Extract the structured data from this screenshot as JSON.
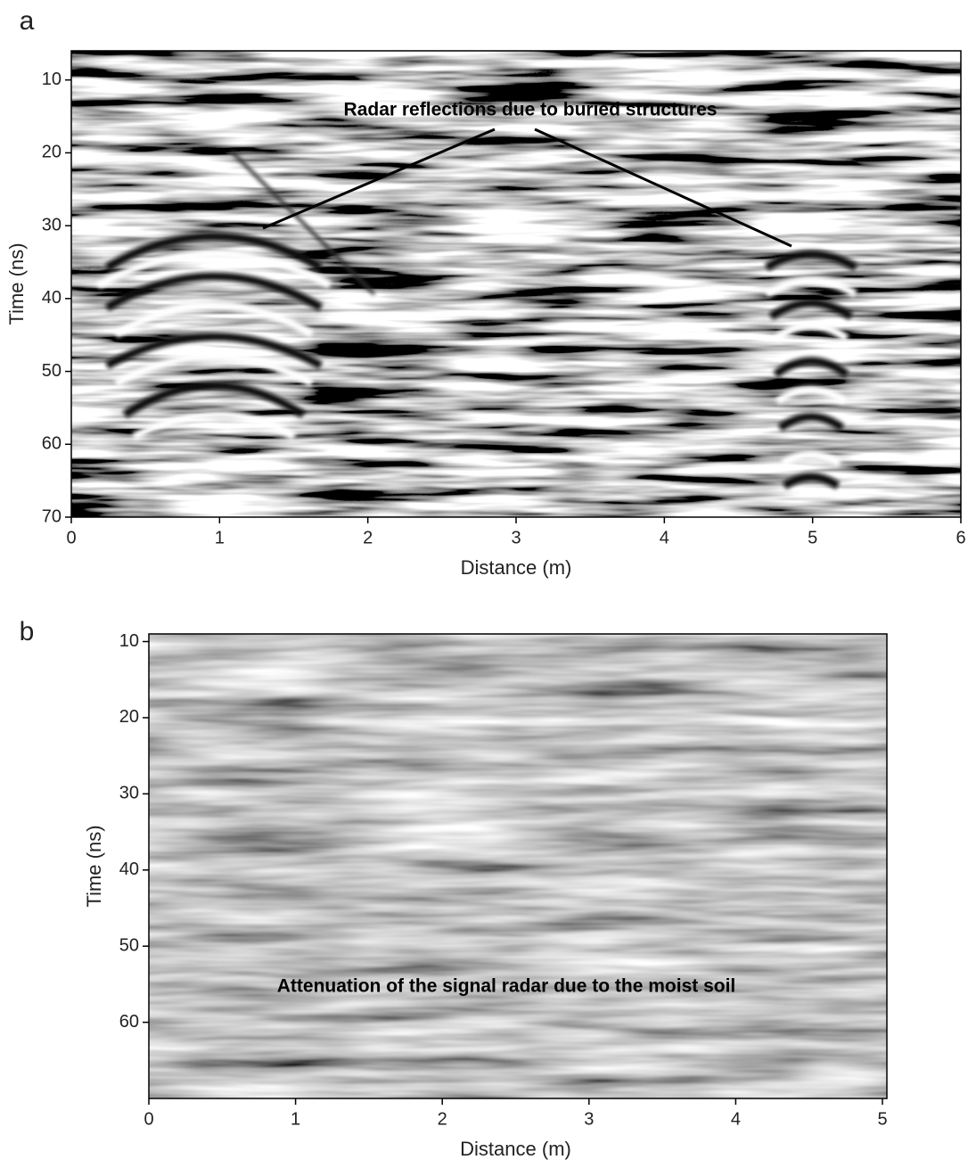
{
  "chart_data": [
    {
      "type": "heatmap",
      "label": "a",
      "xlabel": "Distance (m)",
      "ylabel": "Time (ns)",
      "xlim": [
        0,
        6
      ],
      "ylim": [
        6,
        70
      ],
      "xticks": [
        0,
        1,
        2,
        3,
        4,
        5,
        6
      ],
      "yticks": [
        10,
        20,
        30,
        40,
        50,
        60,
        70
      ],
      "annotation": "Radar reflections due to buried structures"
    },
    {
      "type": "heatmap",
      "label": "b",
      "xlabel": "Distance (m)",
      "ylabel": "Time (ns)",
      "xlim": [
        0,
        5
      ],
      "ylim": [
        9,
        70
      ],
      "xticks": [
        0,
        1,
        2,
        3,
        4,
        5
      ],
      "yticks": [
        10,
        20,
        30,
        40,
        50,
        60
      ],
      "annotation": "Attenuation of the signal radar due to the moist soil"
    }
  ]
}
